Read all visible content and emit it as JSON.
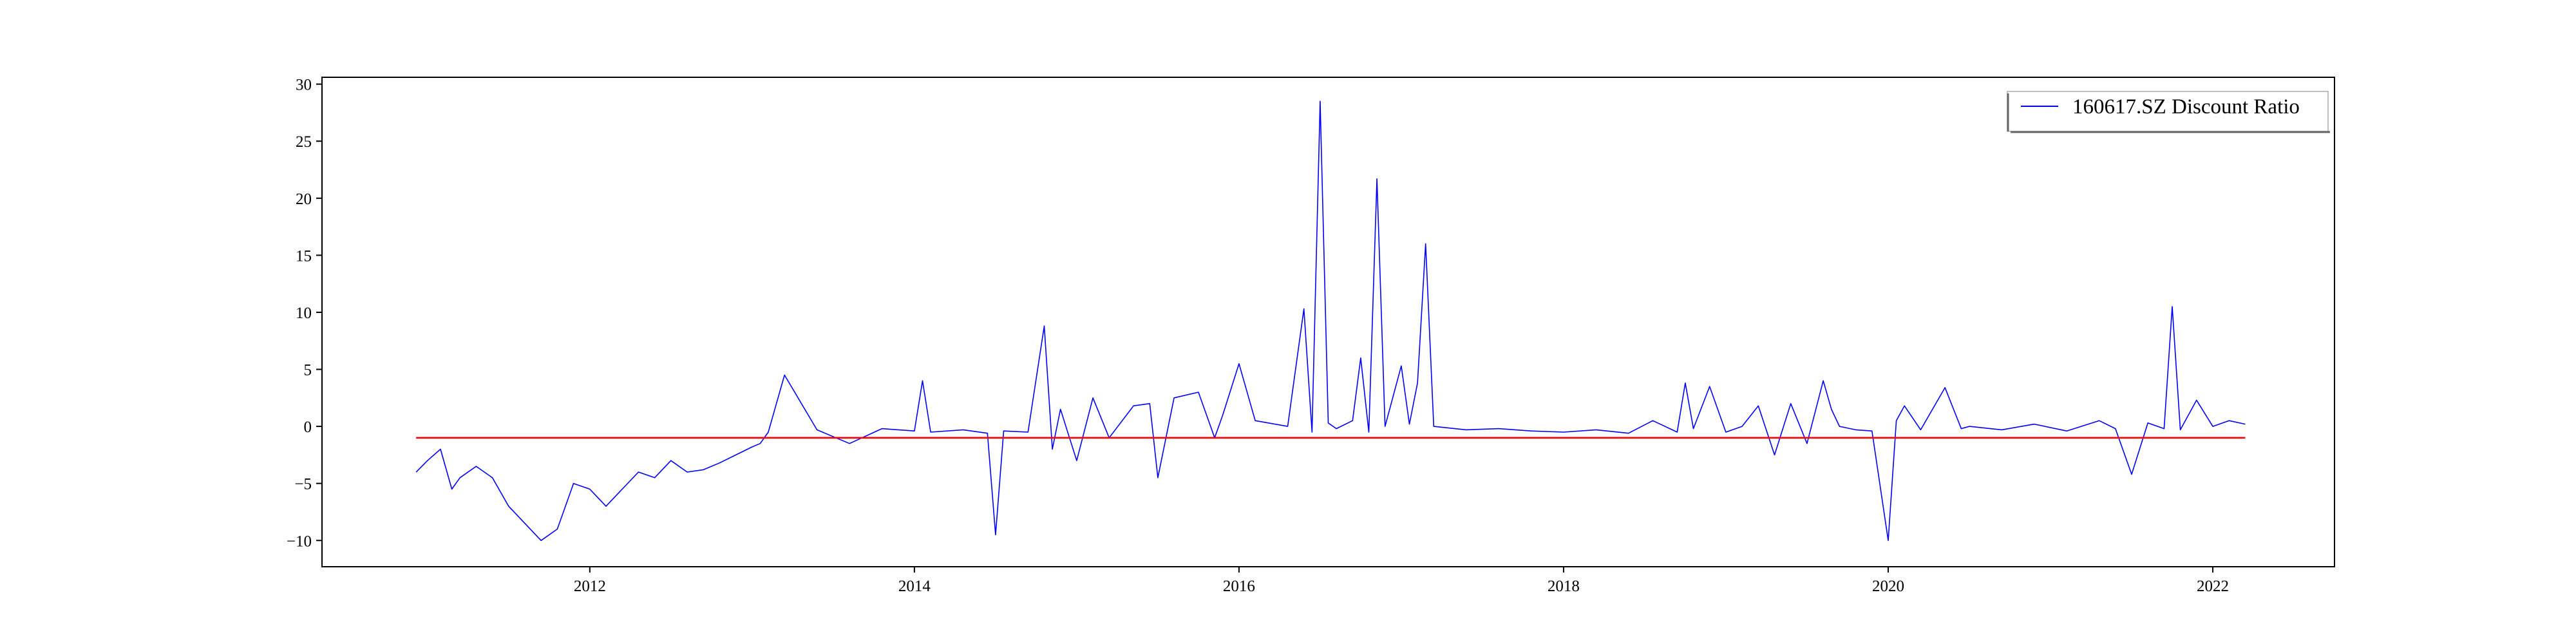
{
  "chart_data": {
    "type": "line",
    "title": "",
    "xlabel": "",
    "ylabel": "",
    "xlim": [
      2010.35,
      2022.75
    ],
    "ylim": [
      -12.3,
      30.6
    ],
    "x_ticks": [
      2012,
      2014,
      2016,
      2018,
      2020,
      2022
    ],
    "x_tick_labels": [
      "2012",
      "2014",
      "2016",
      "2018",
      "2020",
      "2022"
    ],
    "y_ticks": [
      -10,
      -5,
      0,
      5,
      10,
      15,
      20,
      25,
      30
    ],
    "y_tick_labels": [
      "−10",
      "−5",
      "0",
      "5",
      "10",
      "15",
      "20",
      "25",
      "30"
    ],
    "grid": false,
    "legend": {
      "position": "top-right",
      "entries": [
        "160617.SZ Discount Ratio"
      ]
    },
    "series": [
      {
        "name": "160617.SZ Discount Ratio",
        "color": "#0000ff",
        "x": [
          2010.93,
          2011.0,
          2011.08,
          2011.15,
          2011.2,
          2011.3,
          2011.4,
          2011.5,
          2011.6,
          2011.7,
          2011.8,
          2011.9,
          2012.0,
          2012.1,
          2012.2,
          2012.3,
          2012.4,
          2012.5,
          2012.6,
          2012.7,
          2012.8,
          2012.9,
          2013.0,
          2013.05,
          2013.1,
          2013.2,
          2013.4,
          2013.6,
          2013.8,
          2014.0,
          2014.05,
          2014.1,
          2014.3,
          2014.45,
          2014.5,
          2014.55,
          2014.7,
          2014.8,
          2014.85,
          2014.9,
          2015.0,
          2015.1,
          2015.2,
          2015.35,
          2015.45,
          2015.5,
          2015.6,
          2015.75,
          2015.85,
          2015.9,
          2016.0,
          2016.1,
          2016.3,
          2016.4,
          2016.45,
          2016.5,
          2016.55,
          2016.6,
          2016.7,
          2016.75,
          2016.8,
          2016.85,
          2016.9,
          2017.0,
          2017.05,
          2017.1,
          2017.15,
          2017.2,
          2017.4,
          2017.6,
          2017.8,
          2018.0,
          2018.2,
          2018.4,
          2018.55,
          2018.7,
          2018.75,
          2018.8,
          2018.9,
          2019.0,
          2019.1,
          2019.2,
          2019.3,
          2019.4,
          2019.5,
          2019.6,
          2019.65,
          2019.7,
          2019.8,
          2019.9,
          2020.0,
          2020.05,
          2020.1,
          2020.2,
          2020.35,
          2020.45,
          2020.5,
          2020.7,
          2020.9,
          2021.1,
          2021.3,
          2021.4,
          2021.5,
          2021.6,
          2021.7,
          2021.75,
          2021.8,
          2021.9,
          2022.0,
          2022.1,
          2022.2
        ],
        "values": [
          -4.0,
          -3.0,
          -2.0,
          -5.5,
          -4.5,
          -3.5,
          -4.5,
          -7.0,
          -8.5,
          -10.0,
          -9.0,
          -5.0,
          -5.5,
          -7.0,
          -5.5,
          -4.0,
          -4.5,
          -3.0,
          -4.0,
          -3.8,
          -3.2,
          -2.5,
          -1.8,
          -1.5,
          -0.5,
          4.5,
          -0.3,
          -1.5,
          -0.2,
          -0.4,
          4.0,
          -0.5,
          -0.3,
          -0.6,
          -9.5,
          -0.4,
          -0.5,
          8.8,
          -2.0,
          1.5,
          -3.0,
          2.5,
          -1.0,
          1.8,
          2.0,
          -4.5,
          2.5,
          3.0,
          -1.0,
          1.0,
          5.5,
          0.5,
          0.0,
          10.3,
          -0.5,
          28.5,
          0.3,
          -0.2,
          0.5,
          6.0,
          -0.5,
          21.7,
          0.0,
          5.3,
          0.2,
          3.8,
          16.0,
          0.0,
          -0.3,
          -0.2,
          -0.4,
          -0.5,
          -0.3,
          -0.6,
          0.5,
          -0.5,
          3.8,
          -0.2,
          3.5,
          -0.5,
          0.0,
          1.8,
          -2.5,
          2.0,
          -1.5,
          4.0,
          1.5,
          0.0,
          -0.3,
          -0.4,
          -10.0,
          0.5,
          1.8,
          -0.3,
          3.4,
          -0.2,
          0.0,
          -0.3,
          0.2,
          -0.4,
          0.5,
          -0.2,
          -4.2,
          0.3,
          -0.2,
          10.5,
          -0.3,
          2.3,
          0.0,
          0.5,
          0.2
        ]
      },
      {
        "name": "",
        "color": "#ff0000",
        "x": [
          2010.93,
          2022.2
        ],
        "values": [
          -1.0,
          -1.0
        ]
      }
    ]
  }
}
